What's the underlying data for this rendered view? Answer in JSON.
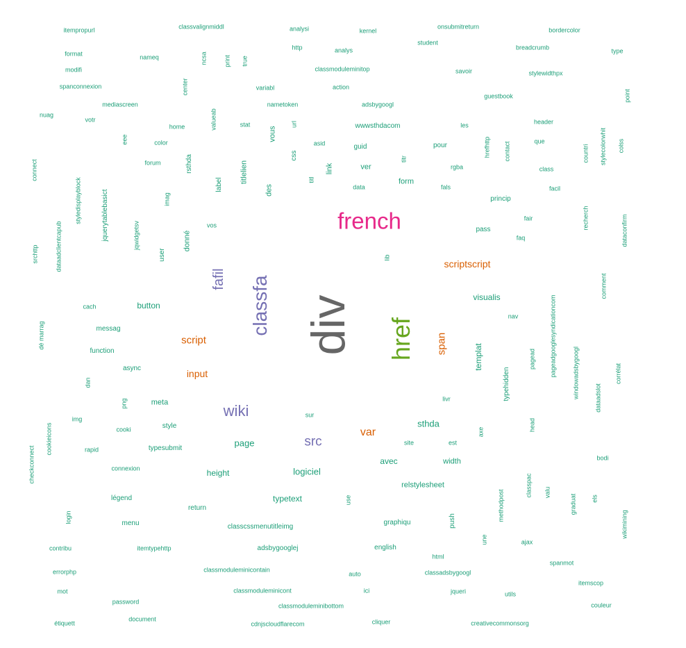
{
  "colors": {
    "teal": "#1b9e77",
    "orange": "#d95f02",
    "purple": "#7570b3",
    "pink": "#e7298a",
    "green": "#66a61e",
    "gray": "#666666"
  },
  "words": [
    {
      "text": "div",
      "color": "gray"
    },
    {
      "text": "french",
      "color": "pink"
    },
    {
      "text": "href",
      "color": "green"
    },
    {
      "text": "classfa",
      "color": "purple"
    },
    {
      "text": "fafil",
      "color": "purple"
    },
    {
      "text": "wiki",
      "color": "purple"
    },
    {
      "text": "src",
      "color": "purple"
    },
    {
      "text": "span",
      "color": "orange"
    },
    {
      "text": "scriptscript",
      "color": "orange"
    },
    {
      "text": "script",
      "color": "orange"
    },
    {
      "text": "input",
      "color": "orange"
    },
    {
      "text": "var",
      "color": "orange"
    },
    {
      "text": "visualis",
      "color": "teal"
    },
    {
      "text": "button",
      "color": "teal"
    },
    {
      "text": "templat",
      "color": "teal"
    },
    {
      "text": "page",
      "color": "teal"
    },
    {
      "text": "sthda",
      "color": "teal"
    },
    {
      "text": "logiciel",
      "color": "teal"
    },
    {
      "text": "avec",
      "color": "teal"
    },
    {
      "text": "height",
      "color": "teal"
    },
    {
      "text": "width",
      "color": "teal"
    },
    {
      "text": "typetext",
      "color": "teal"
    },
    {
      "text": "relstylesheet",
      "color": "teal"
    },
    {
      "text": "meta",
      "color": "teal"
    },
    {
      "text": "itempropurl",
      "color": "teal"
    },
    {
      "text": "classvalignmiddl",
      "color": "teal"
    },
    {
      "text": "analysi",
      "color": "teal"
    },
    {
      "text": "kernel",
      "color": "teal"
    },
    {
      "text": "onsubmitreturn",
      "color": "teal"
    },
    {
      "text": "bordercolor",
      "color": "teal"
    },
    {
      "text": "format",
      "color": "teal"
    },
    {
      "text": "nameq",
      "color": "teal"
    },
    {
      "text": "ncsa",
      "color": "teal"
    },
    {
      "text": "print",
      "color": "teal"
    },
    {
      "text": "true",
      "color": "teal"
    },
    {
      "text": "http",
      "color": "teal"
    },
    {
      "text": "analys",
      "color": "teal"
    },
    {
      "text": "student",
      "color": "teal"
    },
    {
      "text": "breadcrumb",
      "color": "teal"
    },
    {
      "text": "type",
      "color": "teal"
    },
    {
      "text": "modifi",
      "color": "teal"
    },
    {
      "text": "classmoduleminitop",
      "color": "teal"
    },
    {
      "text": "savoir",
      "color": "teal"
    },
    {
      "text": "stylewidthpx",
      "color": "teal"
    },
    {
      "text": "spanconnexion",
      "color": "teal"
    },
    {
      "text": "center",
      "color": "teal"
    },
    {
      "text": "variabl",
      "color": "teal"
    },
    {
      "text": "action",
      "color": "teal"
    },
    {
      "text": "guestbook",
      "color": "teal"
    },
    {
      "text": "point",
      "color": "teal"
    },
    {
      "text": "mediascreen",
      "color": "teal"
    },
    {
      "text": "nametoken",
      "color": "teal"
    },
    {
      "text": "adsbygoogl",
      "color": "teal"
    },
    {
      "text": "nuag",
      "color": "teal"
    },
    {
      "text": "votr",
      "color": "teal"
    },
    {
      "text": "valueab",
      "color": "teal"
    },
    {
      "text": "stat",
      "color": "teal"
    },
    {
      "text": "url",
      "color": "teal"
    },
    {
      "text": "home",
      "color": "teal"
    },
    {
      "text": "vous",
      "color": "teal"
    },
    {
      "text": "wwwsthdacom",
      "color": "teal"
    },
    {
      "text": "les",
      "color": "teal"
    },
    {
      "text": "header",
      "color": "teal"
    },
    {
      "text": "eee",
      "color": "teal"
    },
    {
      "text": "color",
      "color": "teal"
    },
    {
      "text": "asid",
      "color": "teal"
    },
    {
      "text": "guid",
      "color": "teal"
    },
    {
      "text": "pour",
      "color": "teal"
    },
    {
      "text": "hrefhttp",
      "color": "teal"
    },
    {
      "text": "contact",
      "color": "teal"
    },
    {
      "text": "que",
      "color": "teal"
    },
    {
      "text": "countri",
      "color": "teal"
    },
    {
      "text": "stylecolorwhit",
      "color": "teal"
    },
    {
      "text": "colss",
      "color": "teal"
    },
    {
      "text": "connect",
      "color": "teal"
    },
    {
      "text": "forum",
      "color": "teal"
    },
    {
      "text": "rsthda",
      "color": "teal"
    },
    {
      "text": "css",
      "color": "teal"
    },
    {
      "text": "titlelien",
      "color": "teal"
    },
    {
      "text": "link",
      "color": "teal"
    },
    {
      "text": "ver",
      "color": "teal"
    },
    {
      "text": "titr",
      "color": "teal"
    },
    {
      "text": "rgba",
      "color": "teal"
    },
    {
      "text": "class",
      "color": "teal"
    },
    {
      "text": "styledisplayblock",
      "color": "teal"
    },
    {
      "text": "titl",
      "color": "teal"
    },
    {
      "text": "label",
      "color": "teal"
    },
    {
      "text": "des",
      "color": "teal"
    },
    {
      "text": "data",
      "color": "teal"
    },
    {
      "text": "form",
      "color": "teal"
    },
    {
      "text": "fals",
      "color": "teal"
    },
    {
      "text": "facil",
      "color": "teal"
    },
    {
      "text": "jquerytablebasict",
      "color": "teal"
    },
    {
      "text": "imag",
      "color": "teal"
    },
    {
      "text": "princip",
      "color": "teal"
    },
    {
      "text": "recherch",
      "color": "teal"
    },
    {
      "text": "dataadclientcapub",
      "color": "teal"
    },
    {
      "text": "jqwidgetsv",
      "color": "teal"
    },
    {
      "text": "donné",
      "color": "teal"
    },
    {
      "text": "vos",
      "color": "teal"
    },
    {
      "text": "fair",
      "color": "teal"
    },
    {
      "text": "pass",
      "color": "teal"
    },
    {
      "text": "dataconfirm",
      "color": "teal"
    },
    {
      "text": "faq",
      "color": "teal"
    },
    {
      "text": "srchttp",
      "color": "teal"
    },
    {
      "text": "user",
      "color": "teal"
    },
    {
      "text": "lib",
      "color": "teal"
    },
    {
      "text": "comment",
      "color": "teal"
    },
    {
      "text": "cach",
      "color": "teal"
    },
    {
      "text": "pageadgooglesyndicationcom",
      "color": "teal"
    },
    {
      "text": "nav",
      "color": "teal"
    },
    {
      "text": "messag",
      "color": "teal"
    },
    {
      "text": "dé marrag",
      "color": "teal"
    },
    {
      "text": "windowadsbygoogl",
      "color": "teal"
    },
    {
      "text": "pagead",
      "color": "teal"
    },
    {
      "text": "function",
      "color": "teal"
    },
    {
      "text": "async",
      "color": "teal"
    },
    {
      "text": "corrélat",
      "color": "teal"
    },
    {
      "text": "typehidden",
      "color": "teal"
    },
    {
      "text": "dan",
      "color": "teal"
    },
    {
      "text": "dataadslot",
      "color": "teal"
    },
    {
      "text": "livr",
      "color": "teal"
    },
    {
      "text": "png",
      "color": "teal"
    },
    {
      "text": "img",
      "color": "teal"
    },
    {
      "text": "sur",
      "color": "teal"
    },
    {
      "text": "cooki",
      "color": "teal"
    },
    {
      "text": "style",
      "color": "teal"
    },
    {
      "text": "head",
      "color": "teal"
    },
    {
      "text": "axe",
      "color": "teal"
    },
    {
      "text": "cookieicons",
      "color": "teal"
    },
    {
      "text": "rapid",
      "color": "teal"
    },
    {
      "text": "typesubmit",
      "color": "teal"
    },
    {
      "text": "site",
      "color": "teal"
    },
    {
      "text": "est",
      "color": "teal"
    },
    {
      "text": "checkconnect",
      "color": "teal"
    },
    {
      "text": "bodi",
      "color": "teal"
    },
    {
      "text": "connexion",
      "color": "teal"
    },
    {
      "text": "classpac",
      "color": "teal"
    },
    {
      "text": "valu",
      "color": "teal"
    },
    {
      "text": "légend",
      "color": "teal"
    },
    {
      "text": "use",
      "color": "teal"
    },
    {
      "text": "methodpost",
      "color": "teal"
    },
    {
      "text": "graduat",
      "color": "teal"
    },
    {
      "text": "els",
      "color": "teal"
    },
    {
      "text": "return",
      "color": "teal"
    },
    {
      "text": "wikimining",
      "color": "teal"
    },
    {
      "text": "login",
      "color": "teal"
    },
    {
      "text": "push",
      "color": "teal"
    },
    {
      "text": "menu",
      "color": "teal"
    },
    {
      "text": "classcssmenutitleimg",
      "color": "teal"
    },
    {
      "text": "graphiqu",
      "color": "teal"
    },
    {
      "text": "une",
      "color": "teal"
    },
    {
      "text": "ajax",
      "color": "teal"
    },
    {
      "text": "contribu",
      "color": "teal"
    },
    {
      "text": "itemtypehttp",
      "color": "teal"
    },
    {
      "text": "adsbygooglej",
      "color": "teal"
    },
    {
      "text": "english",
      "color": "teal"
    },
    {
      "text": "html",
      "color": "teal"
    },
    {
      "text": "spanmot",
      "color": "teal"
    },
    {
      "text": "errorphp",
      "color": "teal"
    },
    {
      "text": "classmoduleminicontain",
      "color": "teal"
    },
    {
      "text": "auto",
      "color": "teal"
    },
    {
      "text": "classadsbygoogl",
      "color": "teal"
    },
    {
      "text": "itemscop",
      "color": "teal"
    },
    {
      "text": "mot",
      "color": "teal"
    },
    {
      "text": "classmoduleminicont",
      "color": "teal"
    },
    {
      "text": "ici",
      "color": "teal"
    },
    {
      "text": "jqueri",
      "color": "teal"
    },
    {
      "text": "utils",
      "color": "teal"
    },
    {
      "text": "password",
      "color": "teal"
    },
    {
      "text": "classmoduleminibottom",
      "color": "teal"
    },
    {
      "text": "couleur",
      "color": "teal"
    },
    {
      "text": "étiquett",
      "color": "teal"
    },
    {
      "text": "document",
      "color": "teal"
    },
    {
      "text": "cdnjscloudflarecom",
      "color": "teal"
    },
    {
      "text": "cliquer",
      "color": "teal"
    },
    {
      "text": "creativecommonsorg",
      "color": "teal"
    }
  ]
}
